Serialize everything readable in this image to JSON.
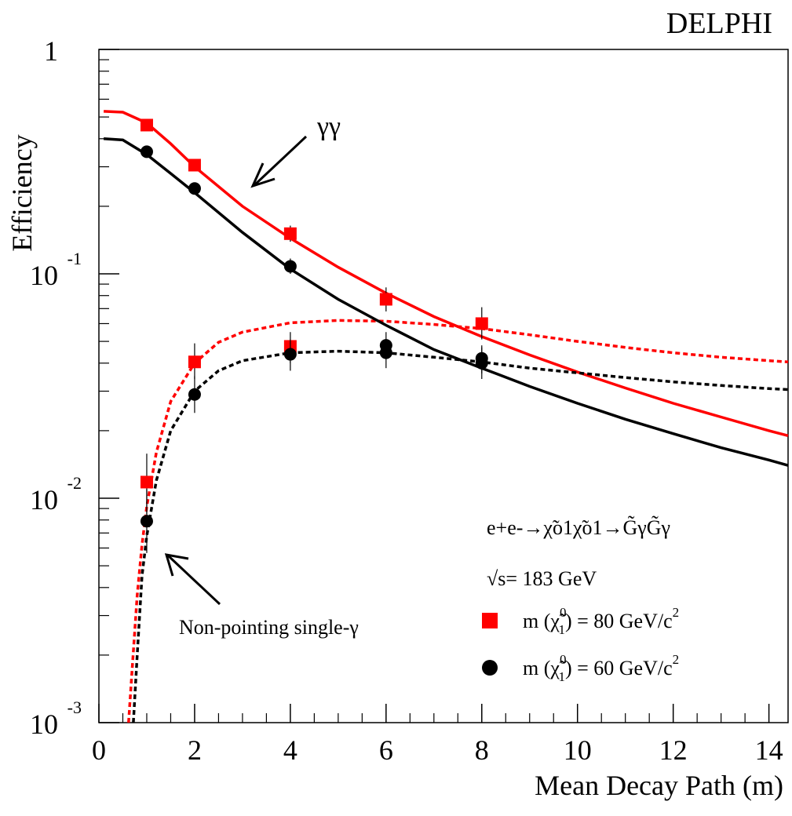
{
  "chart_data": {
    "type": "scatter",
    "title": "DELPHI",
    "xlabel": "Mean Decay Path (m)",
    "ylabel": "Efficiency",
    "xlim": [
      0,
      14.4
    ],
    "ylim": [
      0.001,
      1
    ],
    "y_scale": "log",
    "x_ticks": [
      "0",
      "2",
      "4",
      "6",
      "8",
      "10",
      "12",
      "14"
    ],
    "y_ticks": [
      {
        "base": "10",
        "exp": "-3",
        "value": 0.001
      },
      {
        "base": "10",
        "exp": "-2",
        "value": 0.01
      },
      {
        "base": "10",
        "exp": "-1",
        "value": 0.1
      },
      {
        "base": "1",
        "exp": "",
        "value": 1
      }
    ],
    "colors": {
      "red": "#ff0000",
      "black": "#000000"
    },
    "series": [
      {
        "name": "m (χ̃⁰₁) = 80 GeV/c²",
        "color": "#ff0000",
        "marker": "square",
        "points": [
          {
            "group": "γγ",
            "x": [
              1,
              2,
              4,
              6,
              8
            ],
            "y": [
              0.46,
              0.305,
              0.151,
              0.077,
              0.06
            ],
            "err": [
              [
                0.435,
                0.485
              ],
              [
                0.29,
                0.32
              ],
              [
                0.139,
                0.164
              ],
              [
                0.068,
                0.087
              ],
              [
                0.051,
                0.071
              ]
            ]
          },
          {
            "group": "Non-pointing single-γ",
            "x": [
              1,
              2,
              4
            ],
            "y": [
              0.0118,
              0.0405,
              0.0475
            ],
            "err": [
              [
                0.0085,
                0.0158
              ],
              [
                0.034,
                0.049
              ],
              [
                0.04,
                0.055
              ]
            ]
          }
        ],
        "curves": {
          "γγ": {
            "x": [
              0.1,
              0.5,
              1,
              1.5,
              2,
              3,
              4,
              5,
              6,
              7,
              8,
              9,
              10,
              11,
              12,
              13,
              14,
              14.4
            ],
            "y": [
              0.53,
              0.525,
              0.47,
              0.38,
              0.3,
              0.2,
              0.144,
              0.107,
              0.082,
              0.0645,
              0.0525,
              0.0435,
              0.0365,
              0.031,
              0.0265,
              0.023,
              0.02,
              0.019
            ]
          },
          "Non-pointing single-γ": {
            "x": [
              0.62,
              0.7,
              0.8,
              0.9,
              1,
              1.2,
              1.5,
              2,
              2.5,
              3,
              4,
              5,
              6,
              7,
              8,
              9,
              10,
              11,
              12,
              13,
              14,
              14.4
            ],
            "y": [
              0.001,
              0.0018,
              0.0037,
              0.0062,
              0.0092,
              0.016,
              0.027,
              0.04,
              0.0495,
              0.055,
              0.0605,
              0.062,
              0.0615,
              0.0595,
              0.057,
              0.0535,
              0.05,
              0.047,
              0.0445,
              0.0425,
              0.041,
              0.0405
            ]
          }
        }
      },
      {
        "name": "m (χ̃⁰₁) = 60 GeV/c²",
        "color": "#000000",
        "marker": "circle",
        "points": [
          {
            "group": "γγ",
            "x": [
              1,
              2,
              4,
              6,
              8
            ],
            "y": [
              0.35,
              0.24,
              0.108,
              0.048,
              0.04
            ],
            "err": [
              [
                0.33,
                0.37
              ],
              [
                0.228,
                0.253
              ],
              [
                0.1,
                0.117
              ],
              [
                0.042,
                0.055
              ],
              [
                0.034,
                0.047
              ]
            ]
          },
          {
            "group": "Non-pointing single-γ",
            "x": [
              1,
              2,
              4,
              6,
              8
            ],
            "y": [
              0.0079,
              0.029,
              0.0438,
              0.0445,
              0.042
            ],
            "err": [
              [
                0.0057,
                0.011
              ],
              [
                0.024,
                0.035
              ],
              [
                0.037,
                0.051
              ],
              [
                0.038,
                0.051
              ],
              [
                0.036,
                0.048
              ]
            ]
          }
        ],
        "curves": {
          "γγ": {
            "x": [
              0.1,
              0.5,
              1,
              1.5,
              2,
              3,
              4,
              5,
              6,
              7,
              8,
              9,
              10,
              11,
              12,
              13,
              14,
              14.4
            ],
            "y": [
              0.4,
              0.395,
              0.34,
              0.28,
              0.23,
              0.153,
              0.105,
              0.077,
              0.059,
              0.046,
              0.038,
              0.0315,
              0.0265,
              0.0225,
              0.0194,
              0.0168,
              0.0148,
              0.014
            ]
          },
          "Non-pointing single-γ": {
            "x": [
              0.72,
              0.8,
              0.9,
              1,
              1.2,
              1.5,
              2,
              2.5,
              3,
              4,
              5,
              6,
              7,
              8,
              9,
              10,
              11,
              12,
              13,
              14,
              14.4
            ],
            "y": [
              0.001,
              0.002,
              0.0045,
              0.0068,
              0.012,
              0.02,
              0.03,
              0.037,
              0.041,
              0.0445,
              0.0452,
              0.0445,
              0.0425,
              0.0405,
              0.038,
              0.0362,
              0.0345,
              0.033,
              0.0318,
              0.0308,
              0.0305
            ]
          }
        }
      }
    ],
    "annotations": {
      "gg_label": "γγ",
      "single_label": "Non-pointing single-γ",
      "process": "e+e-→χ̃o1χ̃o1→G̃γG̃γ",
      "sqrt_s": "√s= 183 GeV"
    },
    "legend": {
      "position": "bottom-right",
      "items": [
        {
          "prefix": "m (",
          "chi": "χ̃",
          "sup": "0",
          "sub": "1",
          "suffix": ") = 80 GeV/c",
          "power": "2",
          "marker": "square",
          "color": "#ff0000"
        },
        {
          "prefix": "m (",
          "chi": "χ̃",
          "sup": "0",
          "sub": "1",
          "suffix": ") = 60 GeV/c",
          "power": "2",
          "marker": "circle",
          "color": "#000000"
        }
      ]
    }
  }
}
